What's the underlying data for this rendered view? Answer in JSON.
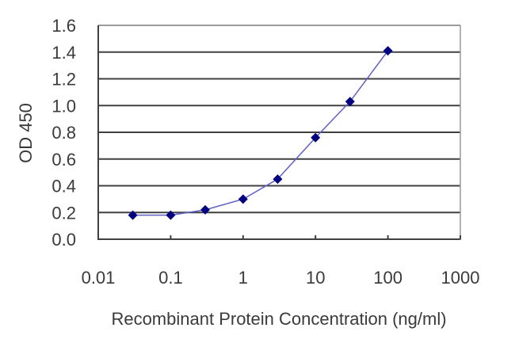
{
  "chart_data": {
    "type": "line",
    "title": "",
    "xlabel": "Recombinant Protein Concentration (ng/ml)",
    "ylabel": "OD 450",
    "x_scale": "log",
    "xlim": [
      0.01,
      1000
    ],
    "ylim": [
      0.0,
      1.6
    ],
    "x_ticks": [
      "0.01",
      "0.1",
      "1",
      "10",
      "100",
      "1000"
    ],
    "y_ticks": [
      "0.0",
      "0.2",
      "0.4",
      "0.6",
      "0.8",
      "1.0",
      "1.2",
      "1.4",
      "1.6"
    ],
    "grid": "horizontal",
    "legend": null,
    "series": [
      {
        "name": "OD 450",
        "color": "#000080",
        "line_color": "#6060c8",
        "marker": "diamond",
        "x": [
          0.03,
          0.1,
          0.3,
          1,
          3,
          10,
          30,
          100
        ],
        "values": [
          0.18,
          0.18,
          0.22,
          0.3,
          0.45,
          0.76,
          1.03,
          1.41
        ]
      }
    ]
  },
  "colors": {
    "background": "#ffffff",
    "gridline": "#404040",
    "axis": "#404040",
    "marker": "#000080",
    "line": "#6060c8",
    "text": "#3a3a3a"
  }
}
